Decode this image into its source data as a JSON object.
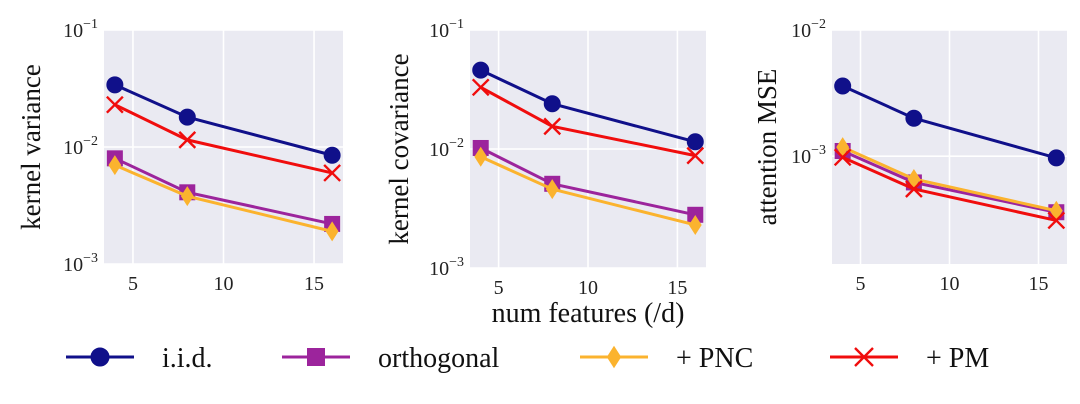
{
  "chart_data": [
    {
      "type": "line",
      "ylabel": "kernel variance",
      "yscale": "log",
      "ylim": [
        0.001,
        0.1
      ],
      "yticks": [
        "10^-3",
        "10^-2",
        "10^-1"
      ],
      "xlim": [
        3.4,
        16.6
      ],
      "xticks": [
        5,
        10,
        15
      ],
      "x": [
        4,
        8,
        16
      ],
      "series": [
        {
          "name": "i.i.d.",
          "values": [
            0.034,
            0.018,
            0.0085
          ]
        },
        {
          "name": "+ PM",
          "values": [
            0.023,
            0.0115,
            0.006
          ]
        },
        {
          "name": "orthogonal",
          "values": [
            0.008,
            0.0041,
            0.0022
          ]
        },
        {
          "name": "+ PNC",
          "values": [
            0.007,
            0.0038,
            0.0019
          ]
        }
      ]
    },
    {
      "type": "line",
      "ylabel": "kernel covariance",
      "xlabel": "num features (/d)",
      "yscale": "log",
      "ylim": [
        0.001,
        0.1
      ],
      "yticks": [
        "10^-3",
        "10^-2",
        "10^-1"
      ],
      "xlim": [
        3.4,
        16.6
      ],
      "xticks": [
        5,
        10,
        15
      ],
      "x": [
        4,
        8,
        16
      ],
      "series": [
        {
          "name": "i.i.d.",
          "values": [
            0.046,
            0.024,
            0.0115
          ]
        },
        {
          "name": "+ PM",
          "values": [
            0.033,
            0.0155,
            0.0088
          ]
        },
        {
          "name": "orthogonal",
          "values": [
            0.0102,
            0.0051,
            0.0028
          ]
        },
        {
          "name": "+ PNC",
          "values": [
            0.0086,
            0.0046,
            0.0023
          ]
        }
      ]
    },
    {
      "type": "line",
      "ylabel": "attention MSE",
      "yscale": "log",
      "ylim": [
        0.00014,
        0.01
      ],
      "yticks": [
        "10^-3",
        "10^-2"
      ],
      "xlim": [
        3.4,
        16.6
      ],
      "xticks": [
        5,
        10,
        15
      ],
      "x": [
        4,
        8,
        16
      ],
      "series": [
        {
          "name": "i.i.d.",
          "values": [
            0.0036,
            0.002,
            0.00097
          ]
        },
        {
          "name": "+ PM",
          "values": [
            0.00098,
            0.00055,
            0.00031
          ]
        },
        {
          "name": "orthogonal",
          "values": [
            0.0011,
            0.00062,
            0.00036
          ]
        },
        {
          "name": "+ PNC",
          "values": [
            0.00118,
            0.00066,
            0.00037
          ]
        }
      ]
    }
  ],
  "legend": {
    "placement": "bottom",
    "items": [
      {
        "name": "i.i.d.",
        "color": "#10108a",
        "marker": "circle"
      },
      {
        "name": "orthogonal",
        "color": "#9c249c",
        "marker": "square"
      },
      {
        "name": "+ PNC",
        "color": "#fbb32e",
        "marker": "diamond"
      },
      {
        "name": "+ PM",
        "color": "#f00d0d",
        "marker": "x"
      }
    ]
  },
  "colors": {
    "i.i.d.": "#10108a",
    "orthogonal": "#9c249c",
    "+ PNC": "#fbb32e",
    "+ PM": "#f00d0d",
    "plot_background": "#eaeaf2",
    "grid": "#ffffff"
  }
}
